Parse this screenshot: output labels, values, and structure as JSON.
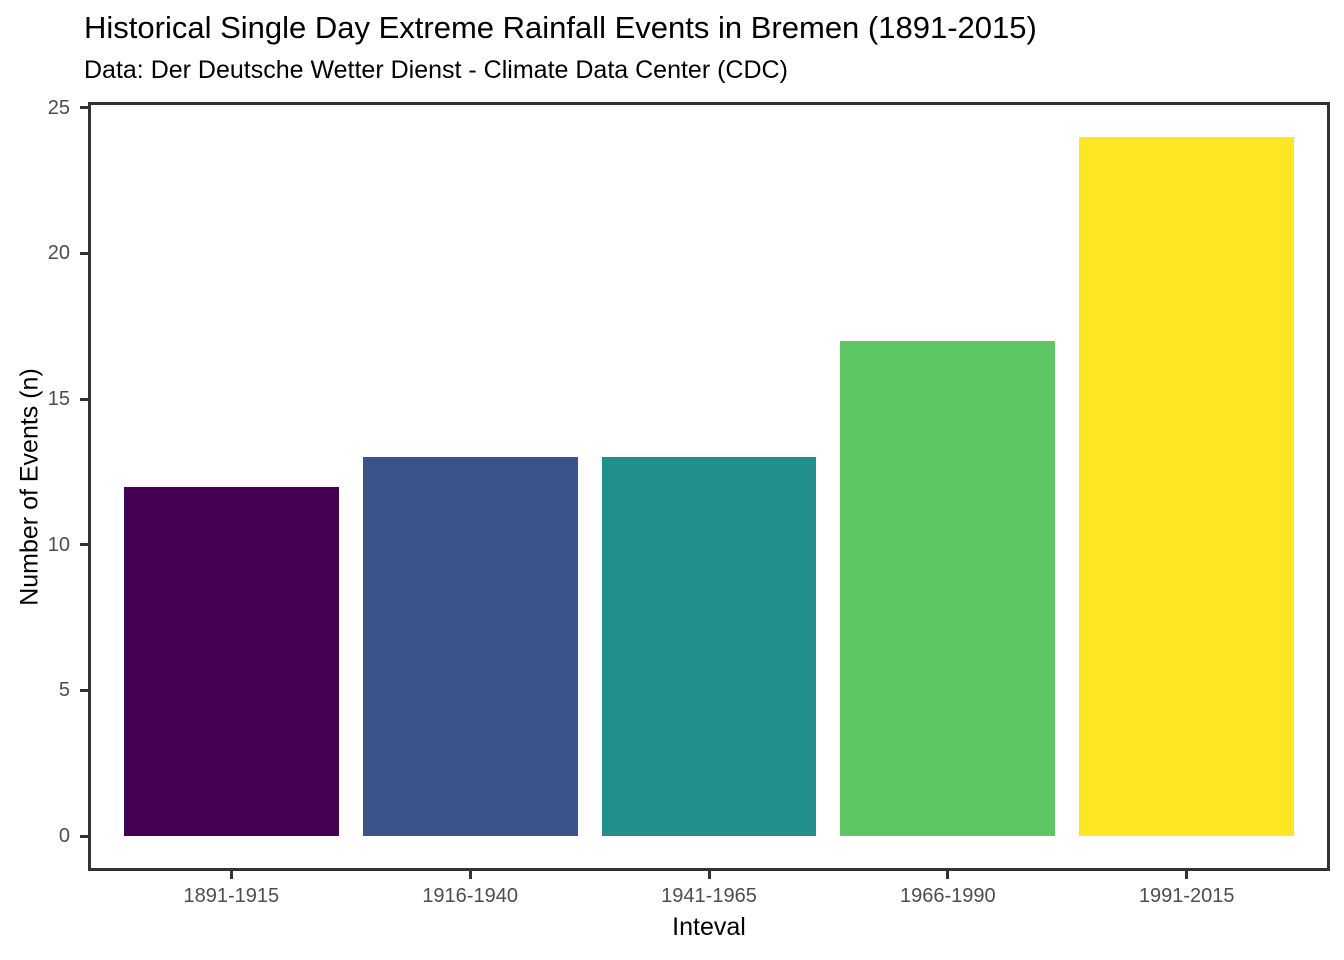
{
  "chart_data": {
    "type": "bar",
    "title": "Historical Single Day Extreme Rainfall Events in Bremen (1891-2015)",
    "subtitle": "Data: Der Deutsche Wetter Dienst - Climate Data Center (CDC)",
    "xlabel": "Inteval",
    "ylabel": "Number of Events (n)",
    "categories": [
      "1891-1915",
      "1916-1940",
      "1941-1965",
      "1966-1990",
      "1991-2015"
    ],
    "values": [
      12,
      13,
      13,
      17,
      24
    ],
    "bar_colors": [
      "#440154",
      "#3B528B",
      "#21908C",
      "#5DC863",
      "#FDE725"
    ],
    "yticks": [
      0,
      5,
      10,
      15,
      20,
      25
    ],
    "ylim": [
      0,
      25
    ],
    "grid": false,
    "legend": false,
    "colors": {
      "panel_border": "#333333",
      "tick_mark": "#333333",
      "tick_label": "#4D4D4D",
      "title_text": "#000000",
      "axis_title_text": "#000000",
      "background": "#FFFFFF"
    }
  }
}
